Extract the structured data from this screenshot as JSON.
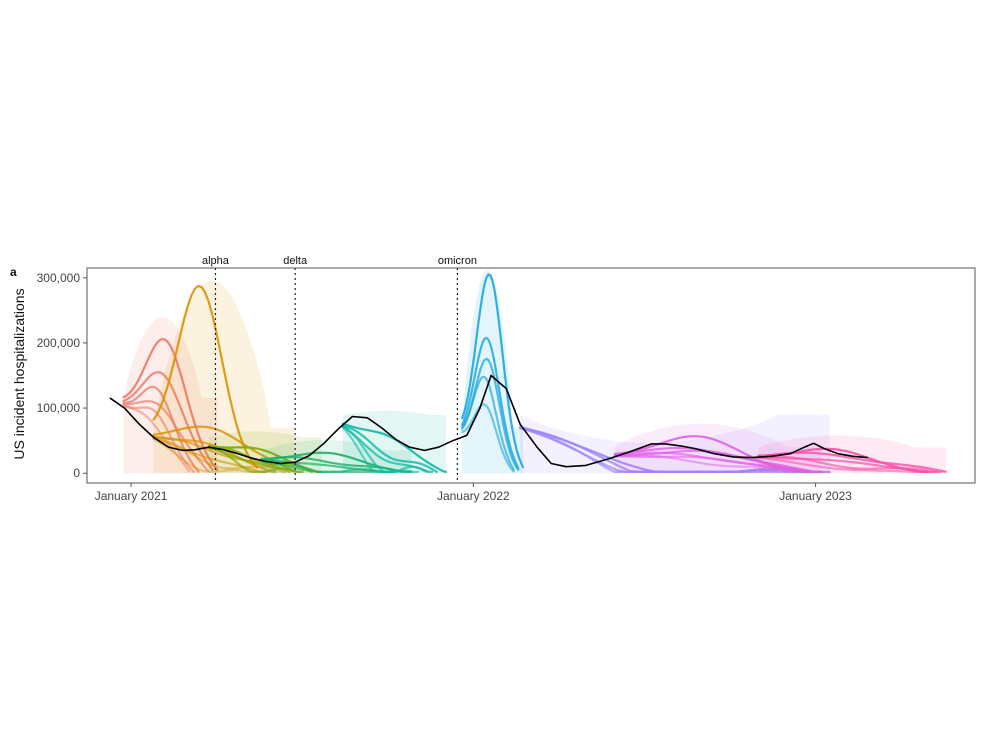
{
  "chart_data": {
    "type": "line",
    "panel_label": "a",
    "title": "",
    "xlabel": "",
    "ylabel": "US incident hospitalizations",
    "xlim": [
      "2020-11-15",
      "2023-06-20"
    ],
    "ylim": [
      -15000,
      315000
    ],
    "yticks": [
      0,
      100000,
      200000,
      300000
    ],
    "ytick_labels": [
      "0",
      "100,000",
      "200,000",
      "300,000"
    ],
    "xticks": [
      "2021-01-01",
      "2022-01-01",
      "2023-01-01"
    ],
    "xtick_labels": [
      "January 2021",
      "January 2022",
      "January 2023"
    ],
    "grid": false,
    "legend": "none",
    "variant_markers": [
      {
        "label": "alpha",
        "date": "2021-04-01"
      },
      {
        "label": "delta",
        "date": "2021-06-25"
      },
      {
        "label": "omicron",
        "date": "2021-12-15"
      }
    ],
    "observed": {
      "color": "#000000",
      "x": [
        "2020-12-10",
        "2020-12-25",
        "2021-01-10",
        "2021-01-25",
        "2021-02-10",
        "2021-02-25",
        "2021-03-10",
        "2021-03-25",
        "2021-04-10",
        "2021-04-25",
        "2021-05-10",
        "2021-05-25",
        "2021-06-10",
        "2021-06-25",
        "2021-07-10",
        "2021-07-25",
        "2021-08-10",
        "2021-08-25",
        "2021-09-10",
        "2021-09-25",
        "2021-10-10",
        "2021-10-25",
        "2021-11-10",
        "2021-11-25",
        "2021-12-10",
        "2021-12-25",
        "2022-01-08",
        "2022-01-20",
        "2022-02-05",
        "2022-02-20",
        "2022-03-10",
        "2022-03-25",
        "2022-04-10",
        "2022-05-01",
        "2022-05-25",
        "2022-06-15",
        "2022-07-10",
        "2022-07-25",
        "2022-08-10",
        "2022-08-25",
        "2022-09-15",
        "2022-10-05",
        "2022-10-25",
        "2022-11-15",
        "2022-12-05",
        "2022-12-20",
        "2022-12-30",
        "2023-01-10",
        "2023-01-25",
        "2023-02-10",
        "2023-02-25"
      ],
      "y": [
        115000,
        100000,
        75000,
        55000,
        40000,
        35000,
        36000,
        40000,
        36000,
        30000,
        23000,
        18000,
        15000,
        17000,
        27000,
        45000,
        68000,
        87000,
        85000,
        70000,
        52000,
        40000,
        35000,
        40000,
        50000,
        58000,
        100000,
        150000,
        130000,
        75000,
        40000,
        15000,
        10000,
        12000,
        22000,
        32000,
        45000,
        45000,
        42000,
        38000,
        30000,
        25000,
        24000,
        26000,
        30000,
        40000,
        46000,
        38000,
        30000,
        26000,
        24000
      ]
    },
    "forecast_groups": [
      {
        "color": "#ee7566",
        "start": "2020-12-24",
        "peaks": [
          250000,
          200000,
          175000,
          150000,
          140000,
          125000
        ],
        "lengths": [
          100,
          95,
          80,
          90,
          75,
          70
        ]
      },
      {
        "color": "#dd9000",
        "start": "2021-01-25",
        "peaks": [
          312000,
          95000,
          70000,
          60000,
          50000,
          40000,
          30000
        ],
        "lengths": [
          110,
          150,
          130,
          145,
          120,
          140,
          110
        ]
      },
      {
        "color": "#7daa00",
        "start": "2021-03-25",
        "peaks": [
          55000,
          42000,
          35000,
          25000
        ],
        "lengths": [
          120,
          110,
          100,
          95
        ]
      },
      {
        "color": "#1db36c",
        "start": "2021-05-20",
        "peaks": [
          40000,
          30000,
          22000,
          15000,
          12000
        ],
        "lengths": [
          160,
          150,
          140,
          130,
          120
        ]
      },
      {
        "color": "#10b9a4",
        "start": "2021-08-15",
        "peaks": [
          90000,
          65000,
          55000,
          42000,
          32000
        ],
        "lengths": [
          110,
          100,
          95,
          90,
          80
        ]
      },
      {
        "color": "#1aa6e0",
        "start": "2021-12-20",
        "peaks": [
          330000,
          235000,
          200000,
          175000,
          130000
        ],
        "lengths": [
          65,
          60,
          60,
          55,
          55
        ]
      },
      {
        "color": "#9d86ff",
        "start": "2022-02-20",
        "peaks": [
          35000,
          28000,
          22000,
          18000
        ],
        "lengths": [
          330,
          320,
          310,
          300
        ]
      },
      {
        "color": "#e060e8",
        "start": "2022-06-01",
        "peaks": [
          68000,
          50000,
          45000,
          40000,
          35000,
          30000
        ],
        "lengths": [
          200,
          210,
          220,
          200,
          215,
          205
        ]
      },
      {
        "color": "#ff4fa8",
        "start": "2022-11-01",
        "peaks": [
          48000,
          40000,
          30000,
          25000,
          18000
        ],
        "lengths": [
          180,
          200,
          195,
          190,
          185
        ]
      }
    ]
  }
}
